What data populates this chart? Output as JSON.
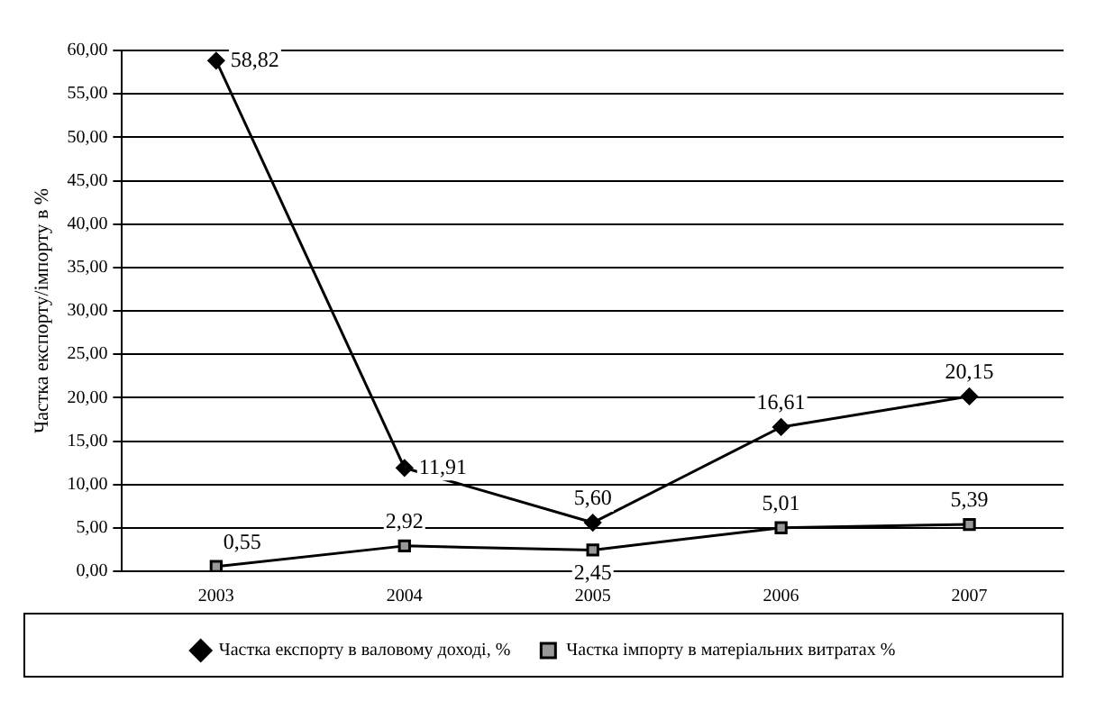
{
  "chart_data": {
    "type": "line",
    "ylabel": "Частка експорту/імпорту в %",
    "categories": [
      "2003",
      "2004",
      "2005",
      "2006",
      "2007"
    ],
    "series": [
      {
        "name": "Частка експорту в валовому доході, %",
        "color": "#000000",
        "marker": "diamond",
        "values": [
          58.82,
          11.91,
          5.6,
          16.61,
          20.15
        ],
        "value_labels": [
          "58,82",
          "11,91",
          "5,60",
          "16,61",
          "20,15"
        ]
      },
      {
        "name": "Частка імпорту в матеріальних витратах %",
        "color": "#999999",
        "marker": "square",
        "values": [
          0.55,
          2.92,
          2.45,
          5.01,
          5.39
        ],
        "value_labels": [
          "0,55",
          "2,92",
          "2,45",
          "5,01",
          "5,39"
        ]
      }
    ],
    "ylim": [
      0,
      60
    ],
    "yticks": [
      {
        "value": 0,
        "label": "0,00"
      },
      {
        "value": 5,
        "label": "5,00"
      },
      {
        "value": 10,
        "label": "10,00"
      },
      {
        "value": 15,
        "label": "15,00"
      },
      {
        "value": 20,
        "label": "20,00"
      },
      {
        "value": 25,
        "label": "25,00"
      },
      {
        "value": 30,
        "label": "30,00"
      },
      {
        "value": 35,
        "label": "35,00"
      },
      {
        "value": 40,
        "label": "40,00"
      },
      {
        "value": 45,
        "label": "45,00"
      },
      {
        "value": 50,
        "label": "50,00"
      },
      {
        "value": 55,
        "label": "55,00"
      },
      {
        "value": 60,
        "label": "60,00"
      }
    ],
    "grid": "y",
    "legend": "bottom",
    "line_style": "solid"
  }
}
